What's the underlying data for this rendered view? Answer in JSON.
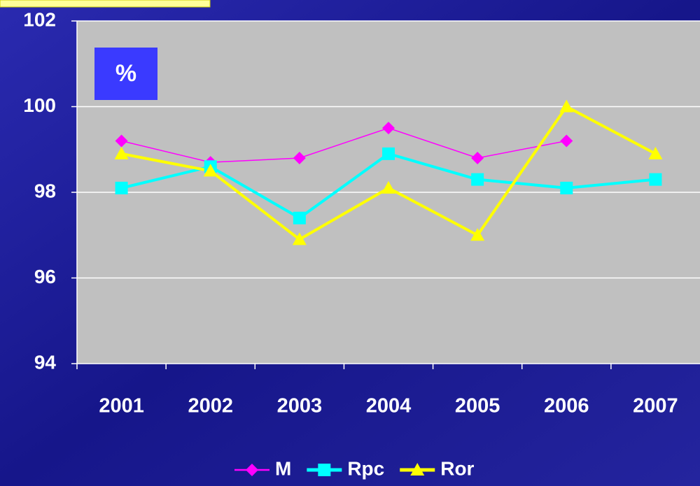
{
  "chart_data": {
    "type": "line",
    "annotation": "%",
    "categories": [
      "2001",
      "2002",
      "2003",
      "2004",
      "2005",
      "2006",
      "2007"
    ],
    "series": [
      {
        "name": "M",
        "color": "#ff00ff",
        "values": [
          99.2,
          98.7,
          98.8,
          99.5,
          98.8,
          99.2,
          null
        ]
      },
      {
        "name": "Rpc",
        "color": "#00ffff",
        "values": [
          98.1,
          98.6,
          97.4,
          98.9,
          98.3,
          98.1,
          98.3
        ]
      },
      {
        "name": "Ror",
        "color": "#ffff00",
        "values": [
          98.9,
          98.5,
          96.9,
          98.1,
          97.0,
          100.0,
          98.9
        ]
      }
    ],
    "ylim": [
      94,
      102
    ],
    "yticks": [
      94,
      96,
      98,
      100,
      102
    ],
    "grid": true,
    "legend": "bottom"
  }
}
